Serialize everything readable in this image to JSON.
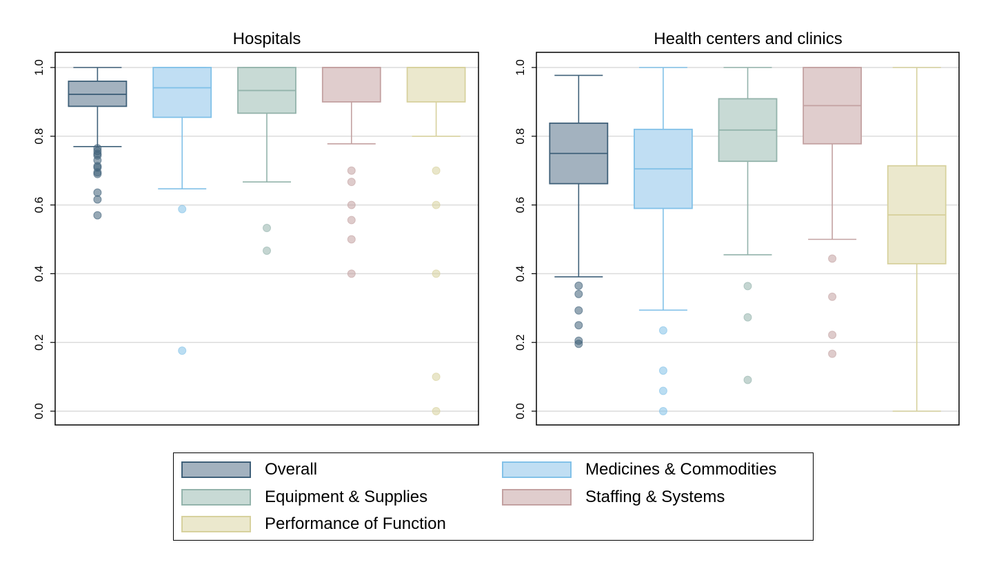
{
  "chart_data": [
    {
      "type": "box",
      "title": "Hospitals",
      "xlabel": "",
      "ylabel": "",
      "ylim": [
        -0.04,
        1.04
      ],
      "yticks": [
        "0.0",
        "0.2",
        "0.4",
        "0.6",
        "0.8",
        "1.0"
      ],
      "grid": true,
      "series": [
        {
          "name": "Overall",
          "q1": 0.887,
          "median": 0.922,
          "q3": 0.96,
          "whisker_low": 0.77,
          "whisker_high": 1.0,
          "outliers": [
            0.765,
            0.757,
            0.749,
            0.744,
            0.73,
            0.713,
            0.709,
            0.695,
            0.69,
            0.636,
            0.616,
            0.57
          ]
        },
        {
          "name": "Medicines & Commodities",
          "q1": 0.855,
          "median": 0.941,
          "q3": 1.0,
          "whisker_low": 0.647,
          "whisker_high": 1.0,
          "outliers": [
            0.588,
            0.176
          ]
        },
        {
          "name": "Equipment & Supplies",
          "q1": 0.867,
          "median": 0.933,
          "q3": 1.0,
          "whisker_low": 0.667,
          "whisker_high": 1.0,
          "outliers": [
            0.533,
            0.467
          ]
        },
        {
          "name": "Staffing & Systems",
          "q1": 0.9,
          "median": 1.0,
          "q3": 1.0,
          "whisker_low": 0.778,
          "whisker_high": 1.0,
          "outliers": [
            0.7,
            0.667,
            0.6,
            0.556,
            0.5,
            0.4
          ]
        },
        {
          "name": "Performance of Function",
          "q1": 0.9,
          "median": 1.0,
          "q3": 1.0,
          "whisker_low": 0.8,
          "whisker_high": 1.0,
          "outliers": [
            0.7,
            0.6,
            0.4,
            0.1,
            0.0
          ]
        }
      ]
    },
    {
      "type": "box",
      "title": "Health centers and clinics",
      "xlabel": "",
      "ylabel": "",
      "ylim": [
        -0.04,
        1.04
      ],
      "yticks": [
        "0.0",
        "0.2",
        "0.4",
        "0.6",
        "0.8",
        "1.0"
      ],
      "grid": true,
      "series": [
        {
          "name": "Overall",
          "q1": 0.662,
          "median": 0.75,
          "q3": 0.838,
          "whisker_low": 0.391,
          "whisker_high": 0.977,
          "outliers": [
            0.365,
            0.341,
            0.293,
            0.25,
            0.205,
            0.196
          ]
        },
        {
          "name": "Medicines & Commodities",
          "q1": 0.59,
          "median": 0.705,
          "q3": 0.82,
          "whisker_low": 0.294,
          "whisker_high": 1.0,
          "outliers": [
            0.235,
            0.118,
            0.059,
            0.0
          ]
        },
        {
          "name": "Equipment & Supplies",
          "q1": 0.727,
          "median": 0.818,
          "q3": 0.909,
          "whisker_low": 0.455,
          "whisker_high": 1.0,
          "outliers": [
            0.364,
            0.273,
            0.091
          ]
        },
        {
          "name": "Staffing & Systems",
          "q1": 0.778,
          "median": 0.889,
          "q3": 1.0,
          "whisker_low": 0.5,
          "whisker_high": 1.0,
          "outliers": [
            0.444,
            0.333,
            0.222,
            0.167
          ]
        },
        {
          "name": "Performance of Function",
          "q1": 0.429,
          "median": 0.571,
          "q3": 0.714,
          "whisker_low": 0.0,
          "whisker_high": 1.0,
          "outliers": []
        }
      ]
    }
  ],
  "legend": {
    "items": [
      {
        "label": "Overall",
        "fill": "#a3b2bf",
        "stroke": "#3f6079"
      },
      {
        "label": "Medicines & Commodities",
        "fill": "#c0def3",
        "stroke": "#82c1e8"
      },
      {
        "label": "Equipment & Supplies",
        "fill": "#c8dad5",
        "stroke": "#93b3ab"
      },
      {
        "label": "Staffing & Systems",
        "fill": "#e0cdcd",
        "stroke": "#c3a1a1"
      },
      {
        "label": "Performance of Function",
        "fill": "#ebe8cd",
        "stroke": "#d7d19d"
      }
    ]
  }
}
